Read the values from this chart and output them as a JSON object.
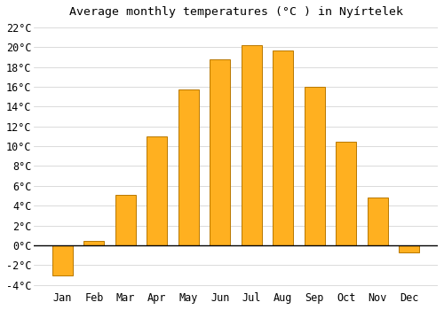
{
  "title": "Average monthly temperatures (°C ) in Nyírtelek",
  "months": [
    "Jan",
    "Feb",
    "Mar",
    "Apr",
    "May",
    "Jun",
    "Jul",
    "Aug",
    "Sep",
    "Oct",
    "Nov",
    "Dec"
  ],
  "values": [
    -3.0,
    0.4,
    5.1,
    11.0,
    15.7,
    18.8,
    20.2,
    19.7,
    16.0,
    10.5,
    4.8,
    -0.7
  ],
  "bar_color": "#FFB020",
  "bar_edge_color": "#B87800",
  "ylim": [
    -4.5,
    22.5
  ],
  "yticks": [
    -4,
    -2,
    0,
    2,
    4,
    6,
    8,
    10,
    12,
    14,
    16,
    18,
    20,
    22
  ],
  "background_color": "#ffffff",
  "grid_color": "#cccccc",
  "title_fontsize": 9.5,
  "tick_fontsize": 8.5,
  "zero_line_color": "#000000",
  "bar_width": 0.65
}
